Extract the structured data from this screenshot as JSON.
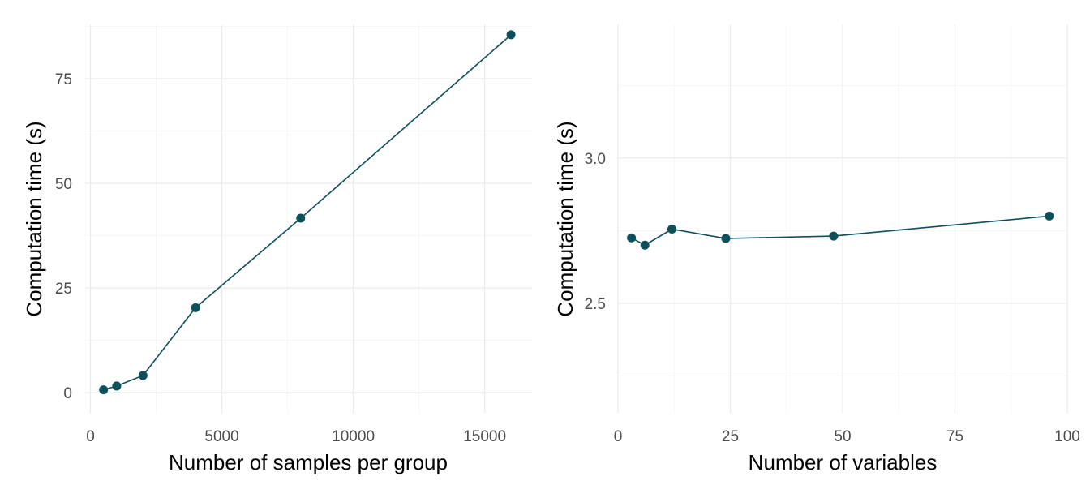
{
  "colors": {
    "series": "#0d4f5a",
    "grid": "#ebebeb",
    "tick_text": "#4d4d4d"
  },
  "chart_data": [
    {
      "type": "line",
      "xlabel": "Number of samples per group",
      "ylabel": "Computation time (s)",
      "xlim": [
        -200,
        16800
      ],
      "ylim": [
        -5,
        88
      ],
      "x_ticks": [
        0,
        5000,
        10000,
        15000
      ],
      "x_tick_labels": [
        "0",
        "5000",
        "10000",
        "15000"
      ],
      "y_ticks": [
        0,
        25,
        50,
        75
      ],
      "y_tick_labels": [
        "0",
        "25",
        "50",
        "75"
      ],
      "grid": true,
      "series": [
        {
          "x": [
            500,
            1000,
            2000,
            4000,
            8000,
            16000
          ],
          "y": [
            0.7,
            1.6,
            4.1,
            20.3,
            41.7,
            85.5
          ]
        }
      ]
    },
    {
      "type": "line",
      "xlabel": "Number of variables",
      "ylabel": "Computation time (s)",
      "xlim": [
        0,
        100
      ],
      "ylim": [
        2.12,
        3.46
      ],
      "x_ticks": [
        0,
        25,
        50,
        75,
        100
      ],
      "x_tick_labels": [
        "0",
        "25",
        "50",
        "75",
        "100"
      ],
      "y_ticks": [
        2.5,
        3.0
      ],
      "y_tick_labels": [
        "2.5",
        "3.0"
      ],
      "grid": true,
      "series": [
        {
          "x": [
            3,
            6,
            12,
            24,
            48,
            96
          ],
          "y": [
            2.725,
            2.7,
            2.755,
            2.723,
            2.731,
            2.8
          ]
        }
      ]
    }
  ]
}
